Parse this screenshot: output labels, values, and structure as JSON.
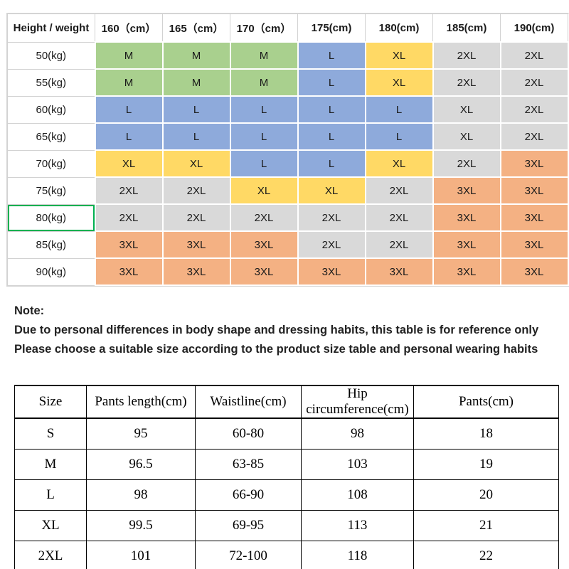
{
  "palette": {
    "green": "#a9d08e",
    "blue": "#8eaadb",
    "yellow": "#ffd965",
    "gray": "#d9d9d9",
    "orange": "#f4b183",
    "highlight_border": "#00b050"
  },
  "size_chart": {
    "header": [
      "Height / weight",
      "160（cm）",
      "165（cm）",
      "170（cm）",
      "175(cm)",
      "180(cm)",
      "185(cm)",
      "190(cm)"
    ],
    "rows": [
      {
        "label": "50(kg)",
        "highlight": false,
        "cells": [
          {
            "size": "M",
            "color": "green"
          },
          {
            "size": "M",
            "color": "green"
          },
          {
            "size": "M",
            "color": "green"
          },
          {
            "size": "L",
            "color": "blue"
          },
          {
            "size": "XL",
            "color": "yellow"
          },
          {
            "size": "2XL",
            "color": "gray"
          },
          {
            "size": "2XL",
            "color": "gray"
          }
        ]
      },
      {
        "label": "55(kg)",
        "highlight": false,
        "cells": [
          {
            "size": "M",
            "color": "green"
          },
          {
            "size": "M",
            "color": "green"
          },
          {
            "size": "M",
            "color": "green"
          },
          {
            "size": "L",
            "color": "blue"
          },
          {
            "size": "XL",
            "color": "yellow"
          },
          {
            "size": "2XL",
            "color": "gray"
          },
          {
            "size": "2XL",
            "color": "gray"
          }
        ]
      },
      {
        "label": "60(kg)",
        "highlight": false,
        "cells": [
          {
            "size": "L",
            "color": "blue"
          },
          {
            "size": "L",
            "color": "blue"
          },
          {
            "size": "L",
            "color": "blue"
          },
          {
            "size": "L",
            "color": "blue"
          },
          {
            "size": "L",
            "color": "blue"
          },
          {
            "size": "XL",
            "color": "gray"
          },
          {
            "size": "2XL",
            "color": "gray"
          }
        ]
      },
      {
        "label": "65(kg)",
        "highlight": false,
        "cells": [
          {
            "size": "L",
            "color": "blue"
          },
          {
            "size": "L",
            "color": "blue"
          },
          {
            "size": "L",
            "color": "blue"
          },
          {
            "size": "L",
            "color": "blue"
          },
          {
            "size": "L",
            "color": "blue"
          },
          {
            "size": "XL",
            "color": "gray"
          },
          {
            "size": "2XL",
            "color": "gray"
          }
        ]
      },
      {
        "label": "70(kg)",
        "highlight": false,
        "cells": [
          {
            "size": "XL",
            "color": "yellow"
          },
          {
            "size": "XL",
            "color": "yellow"
          },
          {
            "size": "L",
            "color": "blue"
          },
          {
            "size": "L",
            "color": "blue"
          },
          {
            "size": "XL",
            "color": "yellow"
          },
          {
            "size": "2XL",
            "color": "gray"
          },
          {
            "size": "3XL",
            "color": "orange"
          }
        ]
      },
      {
        "label": "75(kg)",
        "highlight": false,
        "cells": [
          {
            "size": "2XL",
            "color": "gray"
          },
          {
            "size": "2XL",
            "color": "gray"
          },
          {
            "size": "XL",
            "color": "yellow"
          },
          {
            "size": "XL",
            "color": "yellow"
          },
          {
            "size": "2XL",
            "color": "gray"
          },
          {
            "size": "3XL",
            "color": "orange"
          },
          {
            "size": "3XL",
            "color": "orange"
          }
        ]
      },
      {
        "label": "80(kg)",
        "highlight": true,
        "cells": [
          {
            "size": "2XL",
            "color": "gray"
          },
          {
            "size": "2XL",
            "color": "gray"
          },
          {
            "size": "2XL",
            "color": "gray"
          },
          {
            "size": "2XL",
            "color": "gray"
          },
          {
            "size": "2XL",
            "color": "gray"
          },
          {
            "size": "3XL",
            "color": "orange"
          },
          {
            "size": "3XL",
            "color": "orange"
          }
        ]
      },
      {
        "label": "85(kg)",
        "highlight": false,
        "cells": [
          {
            "size": "3XL",
            "color": "orange"
          },
          {
            "size": "3XL",
            "color": "orange"
          },
          {
            "size": "3XL",
            "color": "orange"
          },
          {
            "size": "2XL",
            "color": "gray"
          },
          {
            "size": "2XL",
            "color": "gray"
          },
          {
            "size": "3XL",
            "color": "orange"
          },
          {
            "size": "3XL",
            "color": "orange"
          }
        ]
      },
      {
        "label": "90(kg)",
        "highlight": false,
        "cells": [
          {
            "size": "3XL",
            "color": "orange"
          },
          {
            "size": "3XL",
            "color": "orange"
          },
          {
            "size": "3XL",
            "color": "orange"
          },
          {
            "size": "3XL",
            "color": "orange"
          },
          {
            "size": "3XL",
            "color": "orange"
          },
          {
            "size": "3XL",
            "color": "orange"
          },
          {
            "size": "3XL",
            "color": "orange"
          }
        ]
      }
    ]
  },
  "note": {
    "title": "Note:",
    "line1": "Due to personal differences in body shape and dressing habits, this table is for reference only",
    "line2": "Please choose a suitable size according to the product size table and personal wearing habits"
  },
  "measurements": {
    "header": [
      "Size",
      "Pants length(cm)",
      "Waistline(cm)",
      "Hip circumference(cm)",
      "Pants(cm)"
    ],
    "rows": [
      [
        "S",
        "95",
        "60-80",
        "98",
        "18"
      ],
      [
        "M",
        "96.5",
        "63-85",
        "103",
        "19"
      ],
      [
        "L",
        "98",
        "66-90",
        "108",
        "20"
      ],
      [
        "XL",
        "99.5",
        "69-95",
        "113",
        "21"
      ],
      [
        "2XL",
        "101",
        "72-100",
        "118",
        "22"
      ]
    ]
  }
}
